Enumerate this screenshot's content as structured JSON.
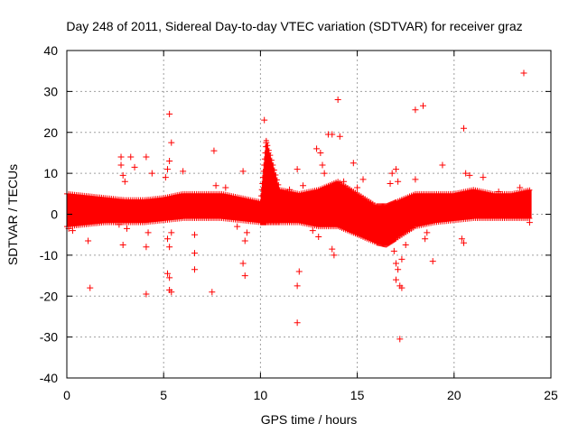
{
  "chart_data": {
    "type": "scatter",
    "title": "Day 248 of 2011, Sidereal Day-to-day VTEC variation (SDTVAR) for receiver graz",
    "xlabel": "GPS time / hours",
    "ylabel": "SDTVAR / TECUs",
    "xlim": [
      0,
      25
    ],
    "ylim": [
      -40,
      40
    ],
    "xticks": [
      0,
      5,
      10,
      15,
      20,
      25
    ],
    "yticks": [
      -40,
      -30,
      -20,
      -10,
      0,
      10,
      20,
      30,
      40
    ],
    "grid": true,
    "marker": "+",
    "color": "#ff0000",
    "dense_band": {
      "x": [
        0,
        1,
        2,
        3,
        4,
        5,
        6,
        7,
        8,
        9,
        10,
        10.3,
        11,
        12,
        13,
        14,
        15,
        16,
        16.5,
        17,
        18,
        19,
        20,
        21,
        22,
        23,
        24
      ],
      "upper": [
        5,
        4.5,
        4,
        3.5,
        3.5,
        4,
        5,
        5,
        5,
        4,
        3,
        18,
        6,
        5,
        6,
        8,
        5,
        2,
        2,
        3,
        5,
        5,
        5,
        6,
        5,
        5,
        6
      ],
      "lower": [
        -3,
        -2.5,
        -2,
        -2,
        -2,
        -1.5,
        -1,
        -1,
        -1,
        -1.5,
        -2,
        -2,
        -2,
        -2,
        -3,
        -3,
        -5,
        -7,
        -7.5,
        -6,
        -3,
        -2,
        -1.5,
        -1,
        -1,
        -1,
        -1
      ]
    },
    "points": [
      {
        "x": 23.6,
        "y": 34.5
      },
      {
        "x": 14.0,
        "y": 28.0
      },
      {
        "x": 18.4,
        "y": 26.5
      },
      {
        "x": 18.0,
        "y": 25.5
      },
      {
        "x": 5.3,
        "y": 24.5
      },
      {
        "x": 10.2,
        "y": 23.0
      },
      {
        "x": 20.5,
        "y": 21.0
      },
      {
        "x": 13.5,
        "y": 19.5
      },
      {
        "x": 13.7,
        "y": 19.5
      },
      {
        "x": 14.1,
        "y": 19.0
      },
      {
        "x": 5.4,
        "y": 17.5
      },
      {
        "x": 7.6,
        "y": 15.5
      },
      {
        "x": 4.1,
        "y": 14.0
      },
      {
        "x": 2.8,
        "y": 14.0
      },
      {
        "x": 3.3,
        "y": 14.0
      },
      {
        "x": 19.4,
        "y": 12.0
      },
      {
        "x": 14.8,
        "y": 12.5
      },
      {
        "x": 11.9,
        "y": 11.0
      },
      {
        "x": 9.1,
        "y": 10.5
      },
      {
        "x": 3.5,
        "y": 11.5
      },
      {
        "x": 4.4,
        "y": 10.0
      },
      {
        "x": 6.0,
        "y": 10.5
      },
      {
        "x": 1.1,
        "y": -6.5
      },
      {
        "x": 2.9,
        "y": -7.5
      },
      {
        "x": 4.1,
        "y": -8.0
      },
      {
        "x": 6.6,
        "y": -5.0
      },
      {
        "x": 6.6,
        "y": -9.5
      },
      {
        "x": 6.6,
        "y": -13.5
      },
      {
        "x": 9.2,
        "y": -6.5
      },
      {
        "x": 9.1,
        "y": -12.0
      },
      {
        "x": 9.2,
        "y": -15.0
      },
      {
        "x": 5.2,
        "y": -14.5
      },
      {
        "x": 5.3,
        "y": -15.5
      },
      {
        "x": 5.3,
        "y": -18.5
      },
      {
        "x": 5.4,
        "y": -19.0
      },
      {
        "x": 4.1,
        "y": -19.5
      },
      {
        "x": 1.2,
        "y": -18.0
      },
      {
        "x": 7.5,
        "y": -19.0
      },
      {
        "x": 12.0,
        "y": -14.0
      },
      {
        "x": 11.9,
        "y": -17.5
      },
      {
        "x": 11.9,
        "y": -26.5
      },
      {
        "x": 13.8,
        "y": -10.0
      },
      {
        "x": 17.2,
        "y": -30.5
      },
      {
        "x": 17.0,
        "y": -16.0
      },
      {
        "x": 17.2,
        "y": -17.5
      },
      {
        "x": 17.3,
        "y": -18.0
      },
      {
        "x": 18.9,
        "y": -11.5
      },
      {
        "x": 20.5,
        "y": -7.0
      },
      {
        "x": 10.3,
        "y": 17.5
      },
      {
        "x": 10.4,
        "y": 15.0
      },
      {
        "x": 10.5,
        "y": 12.5
      },
      {
        "x": 12.9,
        "y": 16.0
      },
      {
        "x": 13.1,
        "y": 15.0
      },
      {
        "x": 13.2,
        "y": 12.0
      },
      {
        "x": 13.3,
        "y": 10.0
      },
      {
        "x": 15.3,
        "y": 8.5
      },
      {
        "x": 16.7,
        "y": 7.5
      },
      {
        "x": 16.8,
        "y": 10.0
      },
      {
        "x": 17.0,
        "y": 11.0
      },
      {
        "x": 17.1,
        "y": 8.0
      },
      {
        "x": 18.0,
        "y": 8.5
      },
      {
        "x": 20.6,
        "y": 10.0
      },
      {
        "x": 20.8,
        "y": 9.5
      },
      {
        "x": 21.5,
        "y": 9.0
      },
      {
        "x": 2.8,
        "y": 12.0
      },
      {
        "x": 2.9,
        "y": 9.5
      },
      {
        "x": 3.0,
        "y": 8.0
      },
      {
        "x": 5.3,
        "y": 13.0
      },
      {
        "x": 5.1,
        "y": 9.0
      },
      {
        "x": 5.2,
        "y": 11.0
      },
      {
        "x": 5.3,
        "y": -8.0
      },
      {
        "x": 5.2,
        "y": -6.0
      },
      {
        "x": 5.4,
        "y": -4.5
      },
      {
        "x": 2.7,
        "y": -2.5
      },
      {
        "x": 3.1,
        "y": -3.5
      },
      {
        "x": 4.2,
        "y": -4.5
      },
      {
        "x": 8.8,
        "y": -3.0
      },
      {
        "x": 9.3,
        "y": -4.5
      },
      {
        "x": 12.7,
        "y": -4.0
      },
      {
        "x": 13.0,
        "y": -5.5
      },
      {
        "x": 13.7,
        "y": -8.5
      },
      {
        "x": 16.9,
        "y": -9.0
      },
      {
        "x": 17.0,
        "y": -12.0
      },
      {
        "x": 17.1,
        "y": -13.5
      },
      {
        "x": 17.3,
        "y": -11.0
      },
      {
        "x": 17.5,
        "y": -7.5
      },
      {
        "x": 18.5,
        "y": -6.0
      },
      {
        "x": 18.6,
        "y": -4.5
      },
      {
        "x": 20.4,
        "y": -6.0
      },
      {
        "x": 0.1,
        "y": -3.5
      },
      {
        "x": 0.3,
        "y": -4.0
      },
      {
        "x": 23.9,
        "y": -2.0
      },
      {
        "x": 7.7,
        "y": 7.0
      },
      {
        "x": 8.2,
        "y": 6.5
      },
      {
        "x": 11.5,
        "y": 6.0
      },
      {
        "x": 12.2,
        "y": 7.0
      },
      {
        "x": 14.3,
        "y": 8.0
      },
      {
        "x": 15.0,
        "y": 6.5
      },
      {
        "x": 22.3,
        "y": 5.5
      },
      {
        "x": 23.4,
        "y": 6.5
      }
    ]
  }
}
